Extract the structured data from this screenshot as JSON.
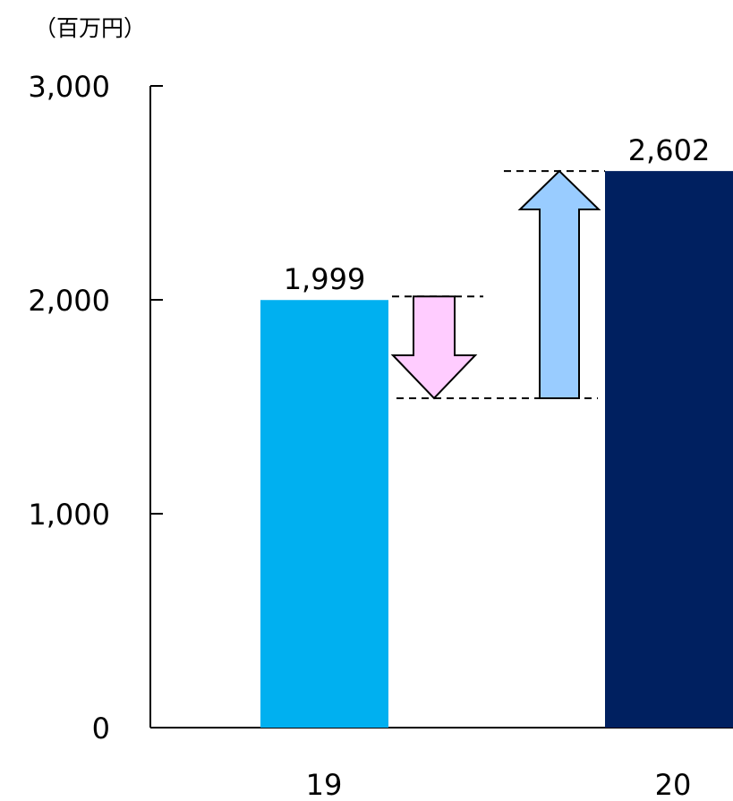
{
  "chart_data": {
    "type": "bar",
    "unit_label": "（百万円）",
    "categories": [
      "19",
      "20"
    ],
    "values": [
      1999,
      2602
    ],
    "value_labels": [
      "1,999",
      "2,602"
    ],
    "bar_colors": [
      "#00b0f0",
      "#002060"
    ],
    "ylim": [
      0,
      3000
    ],
    "yticks": [
      0,
      1000,
      2000,
      3000
    ],
    "ytick_labels": [
      "0",
      "1,000",
      "2,000",
      "3,000"
    ],
    "grid": false,
    "bridge": {
      "decrease": {
        "from": 1999,
        "to": 1540,
        "color": "#ffccff"
      },
      "increase": {
        "from": 1540,
        "to": 2602,
        "color": "#99ccff"
      }
    }
  }
}
